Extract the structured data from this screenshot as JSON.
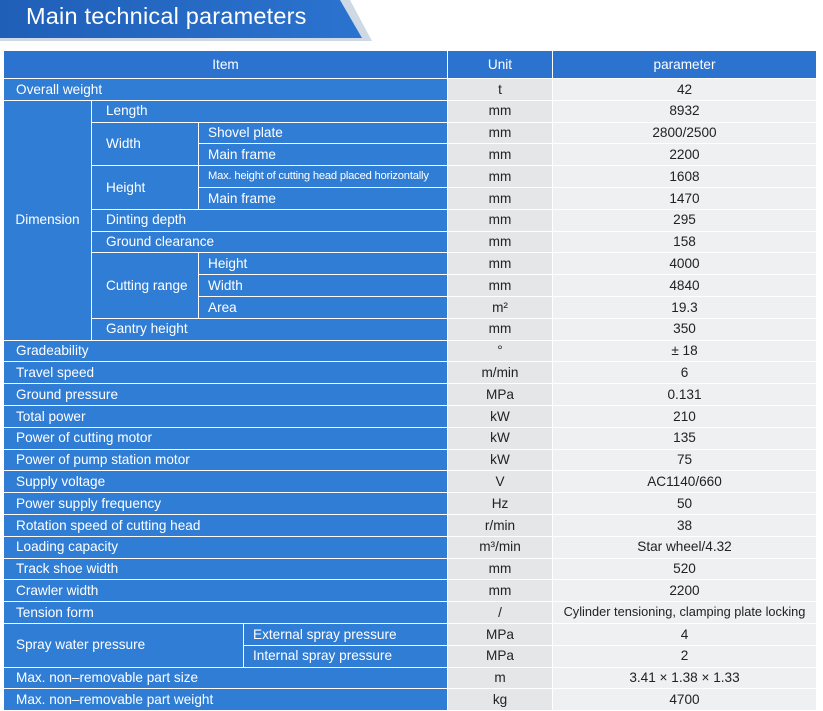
{
  "title": "Main technical parameters",
  "colors": {
    "header_blue": "#2b73cf",
    "row_blue": "#2f7dd4",
    "unit_bg": "#e4e6e8",
    "value_bg": "#eef0f2"
  },
  "header": {
    "item": "Item",
    "unit": "Unit",
    "parameter": "parameter"
  },
  "rows": {
    "overall_weight": {
      "item": "Overall weight",
      "unit": "t",
      "value": "42"
    },
    "dimension": {
      "label": "Dimension",
      "length": {
        "item": "Length",
        "unit": "mm",
        "value": "8932"
      },
      "width": {
        "label": "Width",
        "shovel_plate": {
          "item": "Shovel plate",
          "unit": "mm",
          "value": "2800/2500"
        },
        "main_frame": {
          "item": "Main frame",
          "unit": "mm",
          "value": "2200"
        }
      },
      "height": {
        "label": "Height",
        "cutting_head": {
          "item": "Max. height of cutting head placed horizontally",
          "unit": "mm",
          "value": "1608"
        },
        "main_frame": {
          "item": "Main frame",
          "unit": "mm",
          "value": "1470"
        }
      },
      "dinting_depth": {
        "item": "Dinting depth",
        "unit": "mm",
        "value": "295"
      },
      "ground_clearance": {
        "item": "Ground clearance",
        "unit": "mm",
        "value": "158"
      },
      "cutting_range": {
        "label": "Cutting range",
        "height": {
          "item": "Height",
          "unit": "mm",
          "value": "4000"
        },
        "width": {
          "item": "Width",
          "unit": "mm",
          "value": "4840"
        },
        "area": {
          "item": "Area",
          "unit": "m²",
          "value": "19.3"
        }
      },
      "gantry_height": {
        "item": "Gantry height",
        "unit": "mm",
        "value": "350"
      }
    },
    "gradeability": {
      "item": "Gradeability",
      "unit": "°",
      "value": "± 18"
    },
    "travel_speed": {
      "item": "Travel speed",
      "unit": "m/min",
      "value": "6"
    },
    "ground_pressure": {
      "item": "Ground pressure",
      "unit": "MPa",
      "value": "0.131"
    },
    "total_power": {
      "item": "Total power",
      "unit": "kW",
      "value": "210"
    },
    "cutting_motor": {
      "item": "Power of cutting motor",
      "unit": "kW",
      "value": "135"
    },
    "pump_motor": {
      "item": "Power of pump station motor",
      "unit": "kW",
      "value": "75"
    },
    "supply_voltage": {
      "item": "Supply voltage",
      "unit": "V",
      "value": "AC1140/660"
    },
    "supply_frequency": {
      "item": "Power supply frequency",
      "unit": "Hz",
      "value": "50"
    },
    "rotation_speed": {
      "item": "Rotation speed of cutting head",
      "unit": "r/min",
      "value": "38"
    },
    "loading_capacity": {
      "item": "Loading capacity",
      "unit": "m³/min",
      "value": "Star wheel/4.32"
    },
    "track_shoe": {
      "item": "Track shoe width",
      "unit": "mm",
      "value": "520"
    },
    "crawler_width": {
      "item": "Crawler width",
      "unit": "mm",
      "value": "2200"
    },
    "tension_form": {
      "item": "Tension form",
      "unit": "/",
      "value": "Cylinder tensioning, clamping plate locking"
    },
    "spray_water": {
      "label": "Spray water pressure",
      "external": {
        "item": "External spray pressure",
        "unit": "MPa",
        "value": "4"
      },
      "internal": {
        "item": "Internal spray pressure",
        "unit": "MPa",
        "value": "2"
      }
    },
    "part_size": {
      "item": "Max. non–removable part size",
      "unit": "m",
      "value": "3.41 × 1.38 × 1.33"
    },
    "part_weight": {
      "item": "Max. non–removable part weight",
      "unit": "kg",
      "value": "4700"
    }
  }
}
